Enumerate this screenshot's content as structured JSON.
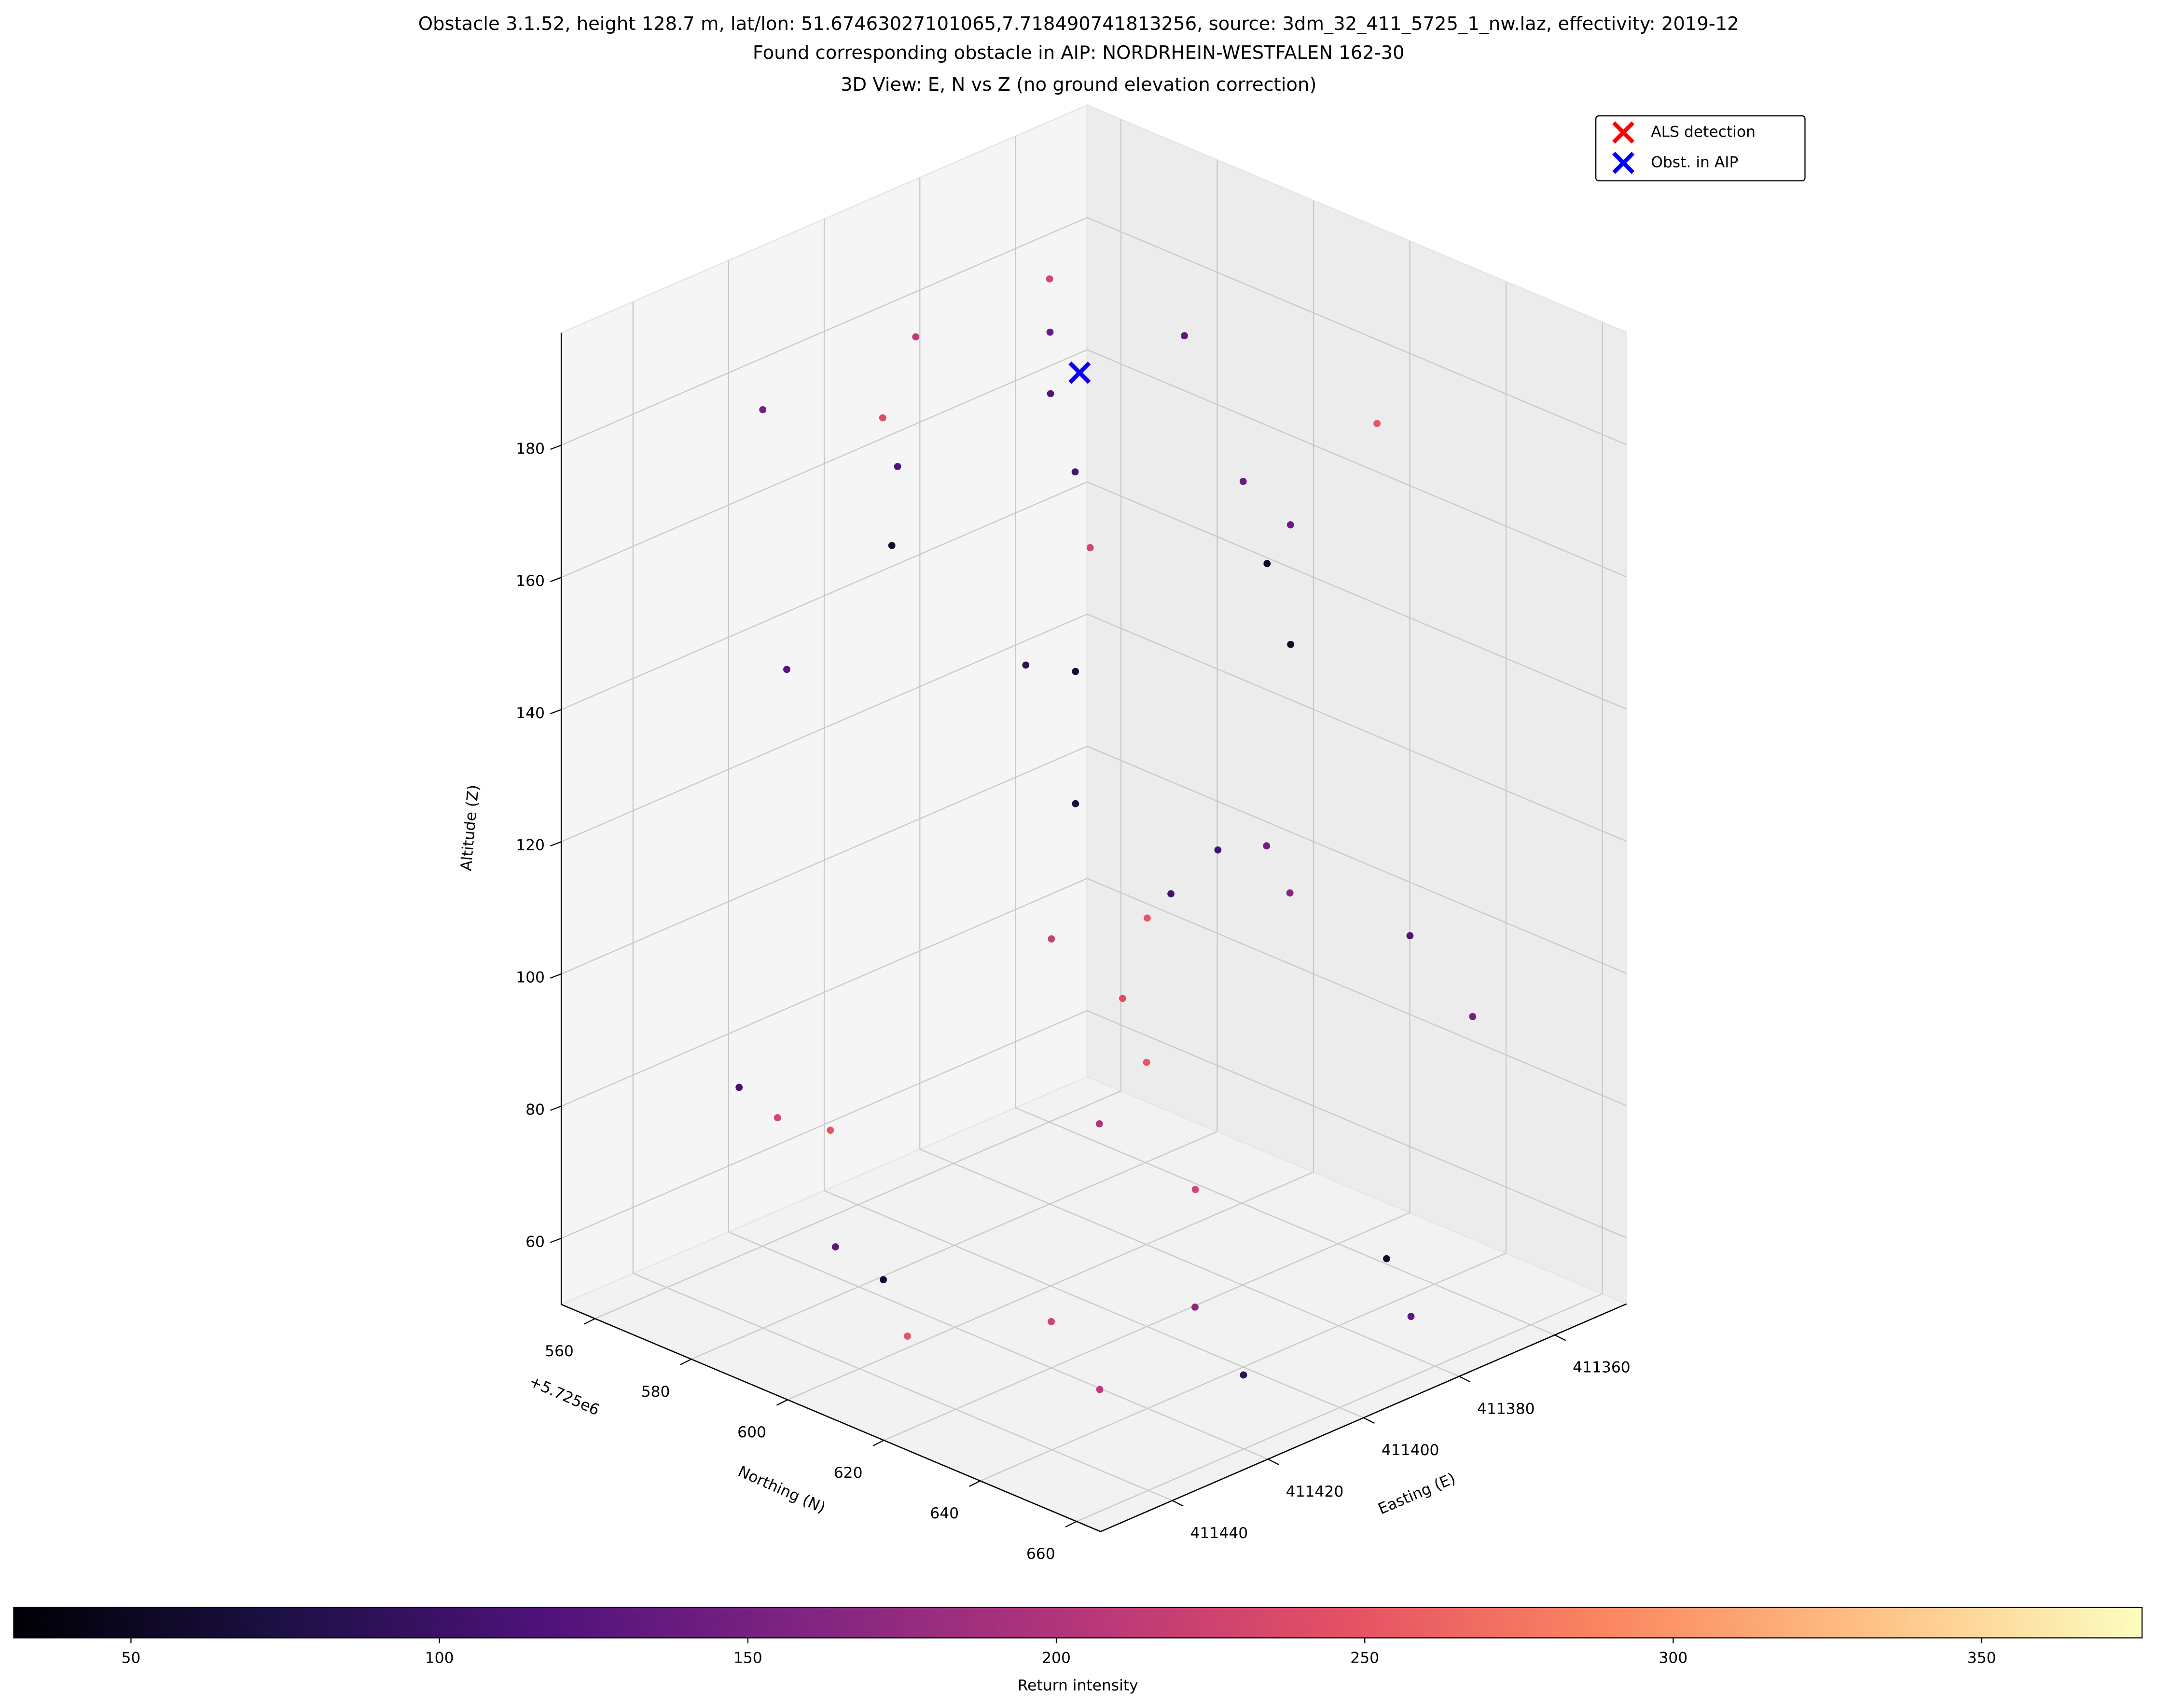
{
  "chart_data": {
    "type": "scatter3d",
    "title": "Obstacle 3.1.52, height 128.7 m, lat/lon: 51.67463027101065,7.718490741813256, source: 3dm_32_411_5725_1_nw.laz, effectivity: 2019-12",
    "subtitle": "Found corresponding obstacle in AIP: NORDRHEIN-WESTFALEN 162-30",
    "view_title": "3D View: E, N vs Z (no ground elevation correction)",
    "xlabel": "Easting (E)",
    "ylabel": "Northing (N)",
    "zlabel": "Altitude (Z)",
    "y_offset_label": "+5.725e6",
    "xlim": [
      411345,
      411455
    ],
    "ylim": [
      553,
      665
    ],
    "zlim": [
      50,
      197
    ],
    "xticks": [
      411360,
      411380,
      411400,
      411420,
      411440
    ],
    "yticks": [
      560,
      580,
      600,
      620,
      640,
      660
    ],
    "zticks": [
      60,
      80,
      100,
      120,
      140,
      160,
      180
    ],
    "grid": true,
    "colormap": "magma",
    "colorbar": {
      "label": "Return intensity",
      "lim": [
        31,
        376
      ],
      "ticks": [
        50,
        100,
        150,
        200,
        250,
        300,
        350
      ]
    },
    "points": {
      "e": [
        411432,
        411432,
        411432,
        411400,
        411372,
        411372,
        411372,
        411400,
        411400,
        411415,
        411385,
        411420,
        411425,
        411425,
        411380,
        411380,
        411430,
        411395,
        411375,
        411405,
        411425,
        411380,
        411400,
        411410,
        411445,
        411442,
        411438,
        411420,
        411410,
        411395,
        411392,
        411360,
        411350,
        411352,
        411365,
        411430,
        411410,
        411380,
        411370,
        411420,
        411400,
        411440,
        411445,
        411440
      ],
      "n": [
        572,
        600,
        640,
        640,
        640,
        600,
        572,
        572,
        600,
        620,
        585,
        585,
        630,
        630,
        630,
        575,
        575,
        640,
        625,
        572,
        625,
        625,
        625,
        630,
        580,
        585,
        592,
        630,
        640,
        610,
        612,
        610,
        625,
        640,
        600,
        640,
        650,
        655,
        640,
        620,
        630,
        610,
        600,
        605
      ],
      "z": [
        184,
        184,
        184,
        184,
        184,
        185,
        185,
        185,
        185,
        184,
        185,
        183,
        160,
        140,
        150,
        130,
        145,
        170,
        165,
        155,
        118,
        118,
        117,
        118,
        88,
        84,
        83,
        90,
        80,
        95,
        85,
        100,
        95,
        88,
        105,
        56,
        55,
        56,
        57,
        57,
        56,
        58,
        70,
        65
      ],
      "c": [
        150,
        120,
        230,
        140,
        250,
        130,
        230,
        210,
        125,
        110,
        140,
        240,
        60,
        70,
        55,
        90,
        120,
        50,
        140,
        60,
        220,
        150,
        110,
        250,
        110,
        230,
        250,
        200,
        230,
        240,
        250,
        160,
        120,
        150,
        110,
        210,
        90,
        130,
        60,
        230,
        170,
        250,
        130,
        60
      ]
    },
    "legend": "upper right",
    "series": [
      {
        "name": "ALS detection",
        "color": "#ff0000",
        "marker": "x",
        "e": [
          411404
        ],
        "n": [
          610
        ],
        "z": [
          192.5
        ]
      },
      {
        "name": "Obst. in AIP",
        "color": "#0000ff",
        "marker": "x",
        "e": [
          411404
        ],
        "n": [
          610
        ],
        "z": [
          192.5
        ]
      }
    ]
  }
}
